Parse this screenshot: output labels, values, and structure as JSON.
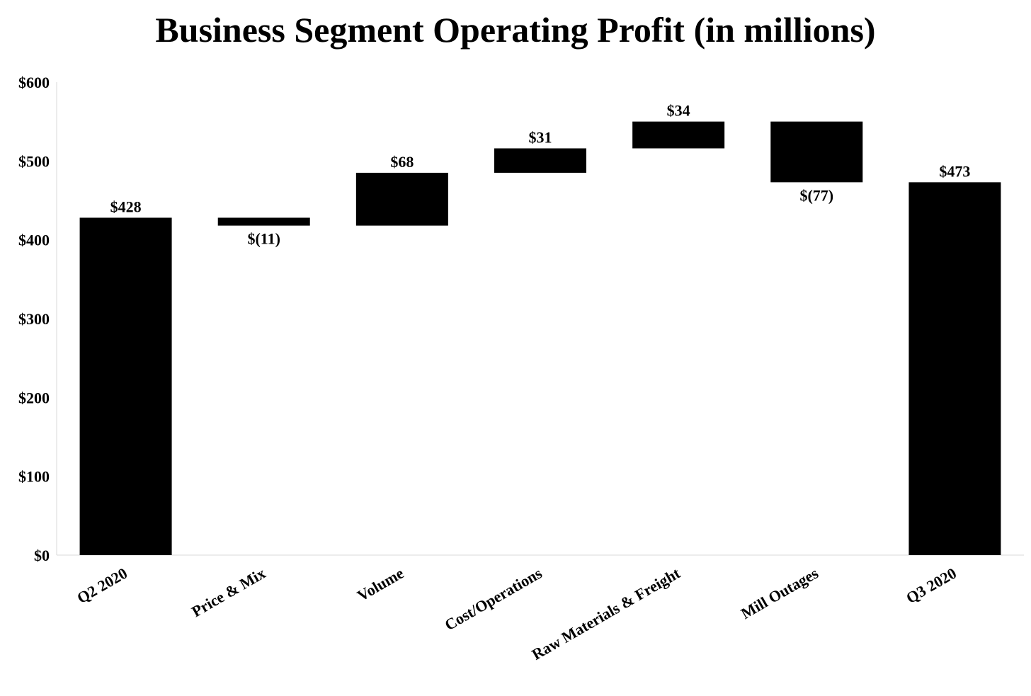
{
  "chart_data": {
    "type": "waterfall",
    "title": "Business Segment Operating Profit (in millions)",
    "xlabel": "",
    "ylabel": "",
    "ylim": [
      0,
      600
    ],
    "yticks": [
      0,
      100,
      200,
      300,
      400,
      500,
      600
    ],
    "ytick_labels": [
      "$0",
      "$100",
      "$200",
      "$300",
      "$400",
      "$500",
      "$600"
    ],
    "grid": false,
    "bar_color": "#000000",
    "categories": [
      "Q2 2020",
      "Price & Mix",
      "Volume",
      "Cost/Operations",
      "Raw Materials & Freight",
      "Mill Outages",
      "Q3 2020"
    ],
    "bars": [
      {
        "category": "Q2 2020",
        "kind": "total",
        "value": 428,
        "start": 0,
        "end": 428,
        "label": "$428"
      },
      {
        "category": "Price & Mix",
        "kind": "delta",
        "value": -11,
        "start": 428,
        "end": 418,
        "label": "$(11)"
      },
      {
        "category": "Volume",
        "kind": "delta",
        "value": 68,
        "start": 418,
        "end": 485,
        "label": "$68"
      },
      {
        "category": "Cost/Operations",
        "kind": "delta",
        "value": 31,
        "start": 485,
        "end": 516,
        "label": "$31"
      },
      {
        "category": "Raw Materials & Freight",
        "kind": "delta",
        "value": 34,
        "start": 516,
        "end": 550,
        "label": "$34"
      },
      {
        "category": "Mill Outages",
        "kind": "delta",
        "value": -77,
        "start": 550,
        "end": 473,
        "label": "$(77)"
      },
      {
        "category": "Q3 2020",
        "kind": "total",
        "value": 473,
        "start": 0,
        "end": 473,
        "label": "$473"
      }
    ]
  }
}
